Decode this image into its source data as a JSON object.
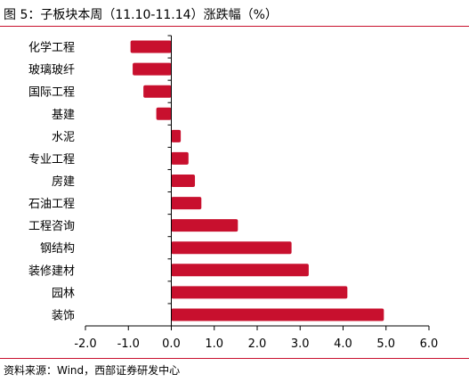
{
  "title": "图 5：子板块本周（11.10-11.14）涨跌幅（%）",
  "source": "资料来源：Wind，西部证券研发中心",
  "colors": {
    "bar": "#c8102e",
    "rule": "#c8102e",
    "axis": "#000000"
  },
  "chart_data": {
    "type": "bar",
    "orientation": "horizontal",
    "title": "",
    "xlabel": "",
    "ylabel": "",
    "categories": [
      "化学工程",
      "玻璃玻纤",
      "国际工程",
      "基建",
      "水泥",
      "专业工程",
      "房建",
      "石油工程",
      "工程咨询",
      "钢结构",
      "装修建材",
      "园林",
      "装饰"
    ],
    "values": [
      -0.95,
      -0.9,
      -0.65,
      -0.35,
      0.22,
      0.4,
      0.55,
      0.7,
      1.55,
      2.8,
      3.2,
      4.1,
      4.95
    ],
    "xlim": [
      -2.0,
      6.0
    ],
    "xticks": [
      "-2.0",
      "-1.0",
      "0.0",
      "1.0",
      "2.0",
      "3.0",
      "4.0",
      "5.0",
      "6.0"
    ],
    "grid": false,
    "legend": "none"
  }
}
